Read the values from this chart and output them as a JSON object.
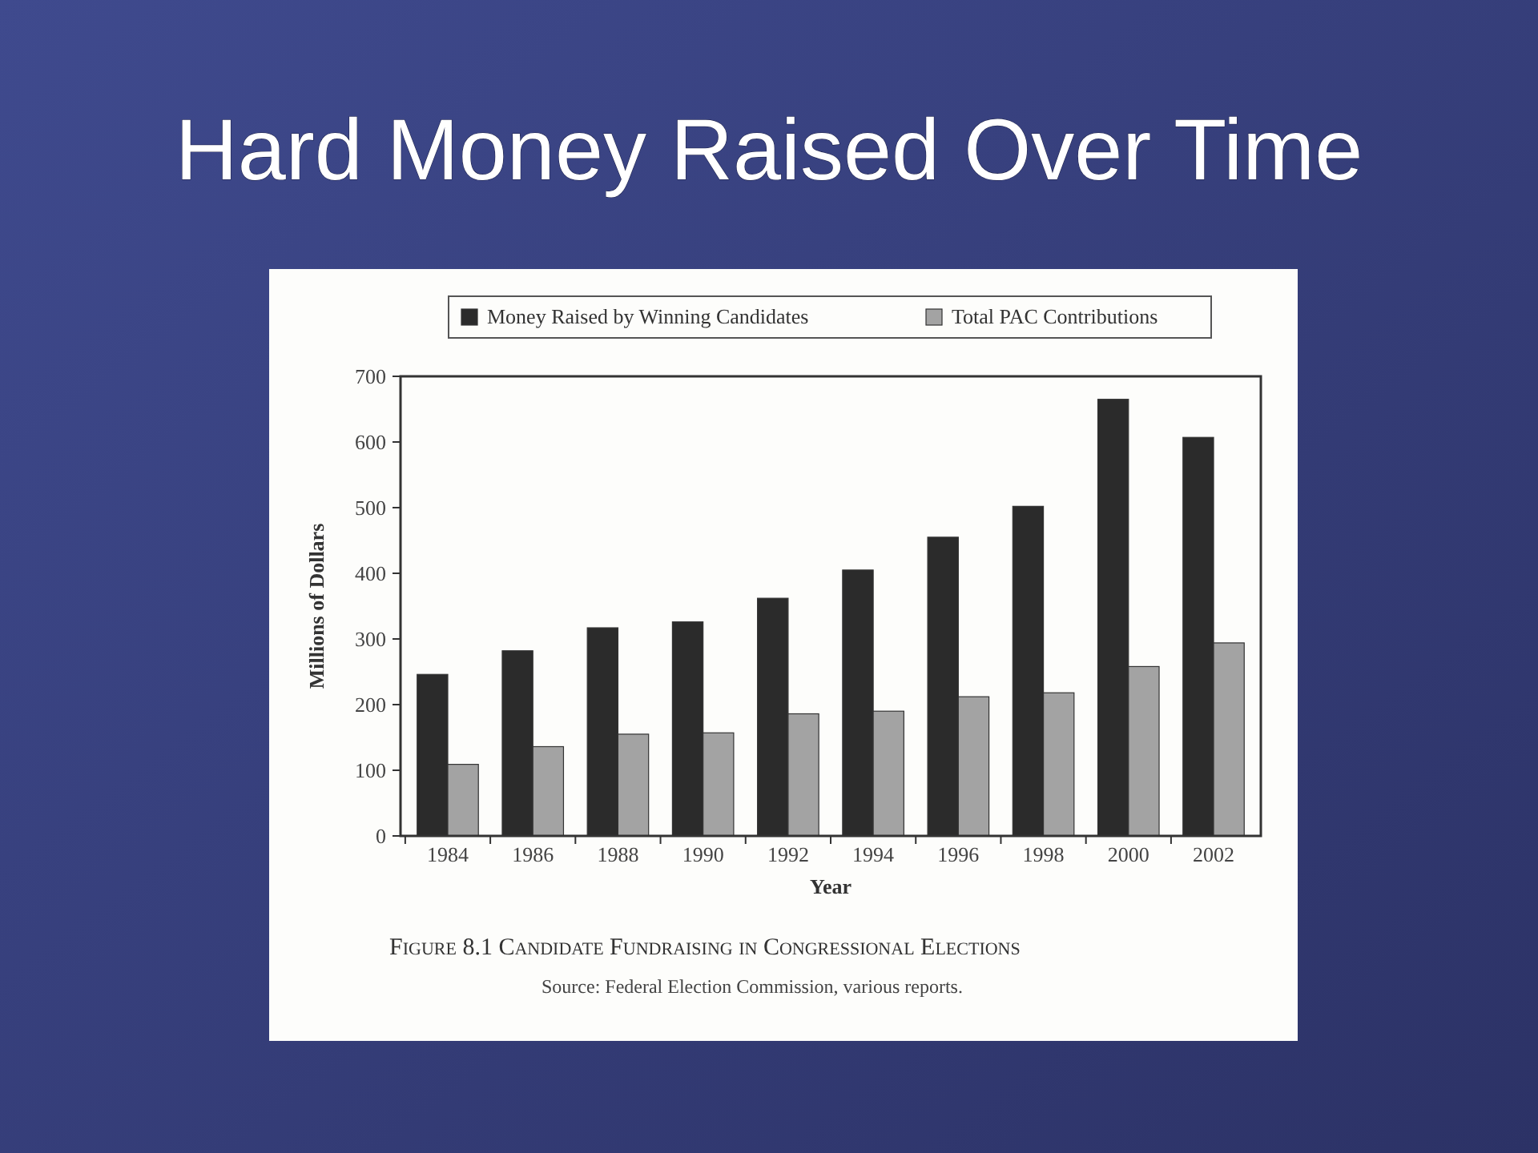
{
  "chart_data": {
    "type": "bar",
    "title": "Hard Money Raised Over Time",
    "xlabel": "Year",
    "ylabel": "Millions of Dollars",
    "categories": [
      "1984",
      "1986",
      "1988",
      "1990",
      "1992",
      "1994",
      "1996",
      "1998",
      "2000",
      "2002"
    ],
    "series": [
      {
        "name": "Money Raised by Winning Candidates",
        "color": "#2b2b2b",
        "values": [
          246,
          282,
          317,
          326,
          362,
          405,
          455,
          502,
          665,
          607
        ]
      },
      {
        "name": "Total PAC Contributions",
        "color": "#a3a3a3",
        "values": [
          109,
          136,
          155,
          157,
          186,
          190,
          212,
          218,
          258,
          294
        ]
      }
    ],
    "ylim": [
      0,
      700
    ],
    "yticks": [
      0,
      100,
      200,
      300,
      400,
      500,
      600,
      700
    ],
    "grid": false,
    "legend": "top",
    "annotations": [
      "Figure 8.1 Candidate Fundraising in Congressional Elections",
      "Source: Federal Election Commission, various reports."
    ]
  }
}
